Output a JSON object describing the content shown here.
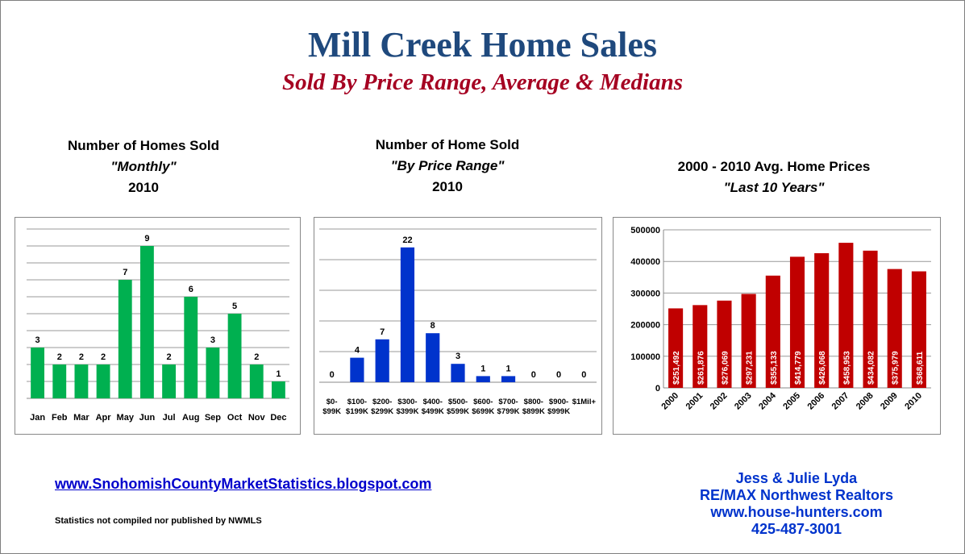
{
  "header": {
    "title": "Mill Creek Home Sales",
    "subtitle": "Sold By Price Range, Average & Medians"
  },
  "colors": {
    "monthly": "#00b050",
    "price_range": "#0033cc",
    "avg_price": "#c00000"
  },
  "charts_text": [
    {
      "line1": "Number of Homes Sold",
      "line2": "\"Monthly\"",
      "line3": "2010"
    },
    {
      "line1": "Number of Home Sold",
      "line2": "\"By Price Range\"",
      "line3": "2010"
    },
    {
      "line1": "2000 - 2010 Avg. Home Prices",
      "line2": "\"Last 10 Years\"",
      "line3": ""
    }
  ],
  "chart_data": [
    {
      "type": "bar",
      "categories": [
        "Jan",
        "Feb",
        "Mar",
        "Apr",
        "May",
        "Jun",
        "Jul",
        "Aug",
        "Sep",
        "Oct",
        "Nov",
        "Dec"
      ],
      "values": [
        3,
        2,
        2,
        2,
        7,
        9,
        2,
        6,
        3,
        5,
        2,
        1
      ],
      "ylim": [
        0,
        10
      ],
      "grid": true,
      "title": "",
      "xlabel": "",
      "ylabel": ""
    },
    {
      "type": "bar",
      "categories": [
        [
          "$0-",
          "$99K"
        ],
        [
          "$100-",
          "$199K"
        ],
        [
          "$200-",
          "$299K"
        ],
        [
          "$300-",
          "$399K"
        ],
        [
          "$400-",
          "$499K"
        ],
        [
          "$500-",
          "$599K"
        ],
        [
          "$600-",
          "$699K"
        ],
        [
          "$700-",
          "$799K"
        ],
        [
          "$800-",
          "$899K"
        ],
        [
          "$900-",
          "$999K"
        ],
        [
          "$1Mil+",
          ""
        ]
      ],
      "values": [
        0,
        4,
        7,
        22,
        8,
        3,
        1,
        1,
        0,
        0,
        0
      ],
      "ylim": [
        0,
        25
      ],
      "grid": true,
      "title": "",
      "xlabel": "",
      "ylabel": ""
    },
    {
      "type": "bar",
      "categories": [
        "2000",
        "2001",
        "2002",
        "2003",
        "2004",
        "2005",
        "2006",
        "2007",
        "2008",
        "2009",
        "2010"
      ],
      "values": [
        251492,
        261876,
        276069,
        297231,
        355133,
        414779,
        426068,
        458953,
        434082,
        375979,
        368611
      ],
      "value_labels": [
        "$251,492",
        "$261,876",
        "$276,069",
        "$297,231",
        "$355,133",
        "$414,779",
        "$426,068",
        "$458,953",
        "$434,082",
        "$375,979",
        "$368,611"
      ],
      "ylim": [
        0,
        500000
      ],
      "yticks": [
        "0",
        "100000",
        "200000",
        "300000",
        "400000",
        "500000"
      ],
      "grid": true,
      "title": "",
      "xlabel": "",
      "ylabel": ""
    }
  ],
  "footer": {
    "link": "www.SnohomishCountyMarketStatistics.blogspot.com",
    "note": "Statistics not compiled nor published by NWMLS",
    "contact_name": "Jess & Julie Lyda",
    "contact_company": "RE/MAX Northwest Realtors",
    "contact_site": "www.house-hunters.com",
    "contact_phone": "425-487-3001"
  }
}
